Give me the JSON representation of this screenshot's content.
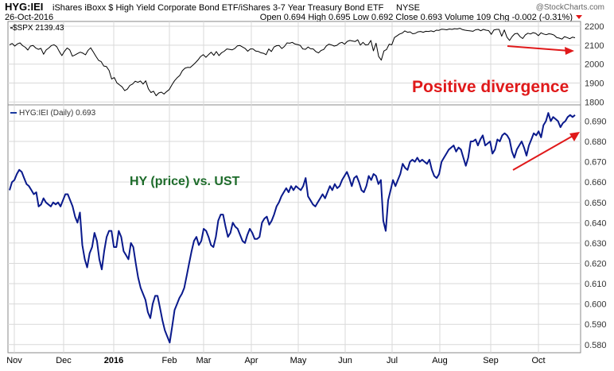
{
  "header": {
    "symbol": "HYG:IEI",
    "description": "iShares iBoxx $ High Yield Corporate Bond ETF/iShares 3-7 Year Treasury Bond ETF",
    "exchange": "NYSE",
    "date": "26-Oct-2016",
    "ohlc": "Open 0.694  High 0.695  Low 0.692  Close 0.693  Volume 109  Chg -0.002 (-0.31%)",
    "brand": "@StockCharts.com"
  },
  "colors": {
    "spx_line": "#000000",
    "ratio_line": "#0a1a8c",
    "annotation": "#e0191a",
    "label_green": "#1d6b2a",
    "grid": "#d9d9d9",
    "axis_text": "#333333",
    "legend_blue": "#1a3aa0"
  },
  "annotations": {
    "divergence": "Positive divergence",
    "hy_vs_ust": "HY (price) vs. UST"
  },
  "chart_data": [
    {
      "type": "line",
      "panel": "top",
      "legend": "$SPX 2139.43",
      "x_ticks": [
        "Nov",
        "Dec",
        "2016",
        "Feb",
        "Mar",
        "Apr",
        "May",
        "Jun",
        "Jul",
        "Aug",
        "Sep",
        "Oct"
      ],
      "y_ticks": [
        1800,
        1900,
        2000,
        2100,
        2200
      ],
      "ylim": [
        1785,
        2225
      ],
      "grid": true,
      "series": [
        {
          "values": [
            2102,
            2109,
            2095,
            2107,
            2112,
            2097,
            2089,
            2074,
            2095,
            2098,
            2085,
            2078,
            2083,
            2052,
            2075,
            2085,
            2098,
            2102,
            2092,
            2067,
            2045,
            2068,
            2085,
            2075,
            2042,
            2048,
            2056,
            2063,
            2058,
            2049,
            2073,
            2086,
            2064,
            2041,
            2020,
            2013,
            1990,
            1987,
            1967,
            1921,
            1929,
            1901,
            1890,
            1880,
            1860,
            1868,
            1888,
            1895,
            1910,
            1904,
            1911,
            1895,
            1912,
            1870,
            1850,
            1857,
            1833,
            1848,
            1852,
            1842,
            1855,
            1866,
            1890,
            1912,
            1928,
            1940,
            1965,
            1978,
            1983,
            1982,
            1994,
            2007,
            2022,
            2040,
            2050,
            2036,
            2050,
            2063,
            2046,
            2066,
            2045,
            2060,
            2068,
            2080,
            2078,
            2075,
            2082,
            2096,
            2098,
            2090,
            2082,
            2068,
            2080,
            2080,
            2069,
            2067,
            2060,
            2057,
            2050,
            2080,
            2066,
            2090,
            2097,
            2098,
            2082,
            2093,
            2112,
            2110,
            2115,
            2106,
            2103,
            2099,
            2080,
            2078,
            2090,
            2081,
            2080,
            2066,
            2059,
            2072,
            2077,
            2096,
            2105,
            2101,
            2095,
            2099,
            2110,
            2115,
            2105,
            2120,
            2125,
            2122,
            2119,
            2128,
            2100,
            2115,
            2101,
            2103,
            2125,
            2070,
            2110,
            2040,
            2021,
            2069,
            2077,
            2105,
            2102,
            2140,
            2149,
            2159,
            2164,
            2175,
            2168,
            2170,
            2160,
            2162,
            2170,
            2172,
            2168,
            2173,
            2172,
            2175,
            2171,
            2179,
            2178,
            2184,
            2183,
            2181,
            2185,
            2183,
            2187,
            2185,
            2189,
            2182,
            2179,
            2177,
            2175,
            2173,
            2181,
            2183,
            2176,
            2183,
            2179,
            2177,
            2157,
            2180,
            2183,
            2183,
            2147,
            2180,
            2142,
            2125,
            2146,
            2160,
            2162,
            2145,
            2135,
            2154,
            2163,
            2159,
            2166,
            2162,
            2150,
            2165,
            2159,
            2155,
            2160,
            2158,
            2153,
            2140,
            2137,
            2132,
            2145,
            2140,
            2134,
            2142,
            2139
          ]
        }
      ]
    },
    {
      "type": "line",
      "panel": "bottom",
      "legend": "HYG:IEI (Daily) 0.693",
      "x_ticks": [
        "Nov",
        "Dec",
        "2016",
        "Feb",
        "Mar",
        "Apr",
        "May",
        "Jun",
        "Jul",
        "Aug",
        "Sep",
        "Oct"
      ],
      "y_ticks": [
        0.58,
        0.59,
        0.6,
        0.61,
        0.62,
        0.63,
        0.64,
        0.65,
        0.66,
        0.67,
        0.68,
        0.69
      ],
      "ylim": [
        0.576,
        0.698
      ],
      "grid": true,
      "series": [
        {
          "values": [
            0.656,
            0.66,
            0.661,
            0.664,
            0.666,
            0.665,
            0.662,
            0.659,
            0.658,
            0.656,
            0.654,
            0.655,
            0.648,
            0.649,
            0.652,
            0.65,
            0.649,
            0.648,
            0.65,
            0.649,
            0.65,
            0.648,
            0.651,
            0.654,
            0.654,
            0.651,
            0.648,
            0.643,
            0.64,
            0.645,
            0.629,
            0.622,
            0.618,
            0.625,
            0.628,
            0.635,
            0.631,
            0.622,
            0.617,
            0.626,
            0.633,
            0.636,
            0.636,
            0.628,
            0.628,
            0.636,
            0.633,
            0.626,
            0.624,
            0.622,
            0.63,
            0.628,
            0.62,
            0.613,
            0.608,
            0.605,
            0.602,
            0.596,
            0.593,
            0.6,
            0.604,
            0.604,
            0.598,
            0.592,
            0.587,
            0.584,
            0.581,
            0.589,
            0.597,
            0.6,
            0.603,
            0.605,
            0.608,
            0.614,
            0.62,
            0.626,
            0.631,
            0.633,
            0.629,
            0.631,
            0.637,
            0.636,
            0.633,
            0.629,
            0.628,
            0.633,
            0.641,
            0.644,
            0.644,
            0.638,
            0.633,
            0.635,
            0.64,
            0.638,
            0.637,
            0.634,
            0.631,
            0.63,
            0.634,
            0.637,
            0.635,
            0.632,
            0.632,
            0.633,
            0.64,
            0.642,
            0.643,
            0.639,
            0.641,
            0.644,
            0.648,
            0.65,
            0.653,
            0.655,
            0.657,
            0.655,
            0.658,
            0.656,
            0.658,
            0.657,
            0.656,
            0.658,
            0.662,
            0.653,
            0.651,
            0.649,
            0.648,
            0.65,
            0.652,
            0.654,
            0.652,
            0.655,
            0.658,
            0.656,
            0.659,
            0.657,
            0.658,
            0.661,
            0.663,
            0.665,
            0.662,
            0.658,
            0.662,
            0.663,
            0.66,
            0.656,
            0.655,
            0.658,
            0.663,
            0.661,
            0.664,
            0.663,
            0.659,
            0.661,
            0.641,
            0.636,
            0.651,
            0.656,
            0.661,
            0.658,
            0.661,
            0.664,
            0.669,
            0.667,
            0.666,
            0.67,
            0.671,
            0.67,
            0.672,
            0.67,
            0.671,
            0.67,
            0.669,
            0.671,
            0.666,
            0.663,
            0.662,
            0.664,
            0.67,
            0.672,
            0.674,
            0.676,
            0.677,
            0.678,
            0.675,
            0.677,
            0.676,
            0.672,
            0.668,
            0.672,
            0.68,
            0.68,
            0.681,
            0.678,
            0.681,
            0.683,
            0.678,
            0.679,
            0.68,
            0.674,
            0.676,
            0.681,
            0.68,
            0.683,
            0.684,
            0.683,
            0.681,
            0.675,
            0.672,
            0.676,
            0.678,
            0.68,
            0.677,
            0.673,
            0.678,
            0.681,
            0.684,
            0.683,
            0.685,
            0.682,
            0.688,
            0.69,
            0.694,
            0.69,
            0.692,
            0.691,
            0.69,
            0.687,
            0.689,
            0.69,
            0.692,
            0.693,
            0.692,
            0.693
          ]
        }
      ]
    }
  ]
}
